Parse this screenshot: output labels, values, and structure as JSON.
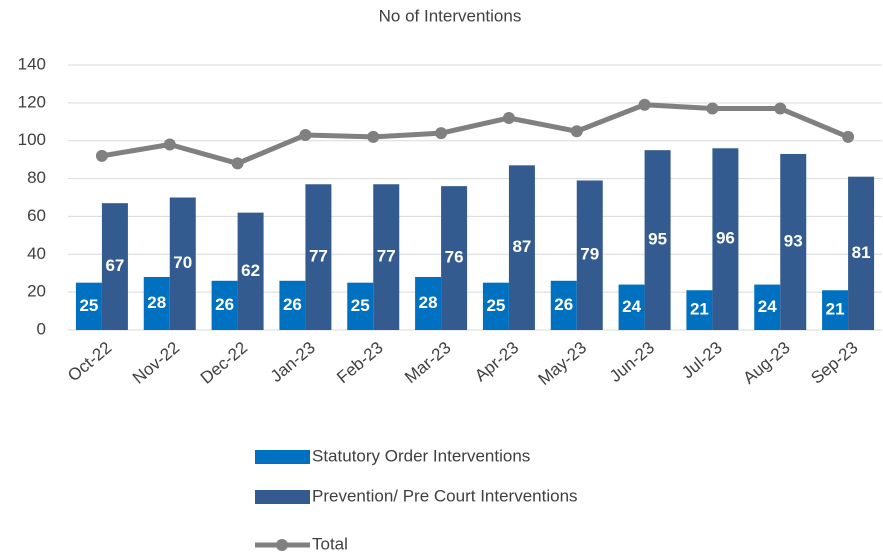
{
  "chart_data": {
    "type": "bar",
    "title": "No of Interventions",
    "categories": [
      "Oct-22",
      "Nov-22",
      "Dec-22",
      "Jan-23",
      "Feb-23",
      "Mar-23",
      "Apr-23",
      "May-23",
      "Jun-23",
      "Jul-23",
      "Aug-23",
      "Sep-23"
    ],
    "series": [
      {
        "name": "Statutory Order Interventions",
        "color": "#0070c0",
        "type": "bar",
        "values": [
          25,
          28,
          26,
          26,
          25,
          28,
          25,
          26,
          24,
          21,
          24,
          21
        ]
      },
      {
        "name": "Prevention/ Pre Court Interventions",
        "color": "#335b8f",
        "type": "bar",
        "values": [
          67,
          70,
          62,
          77,
          77,
          76,
          87,
          79,
          95,
          96,
          93,
          81
        ]
      },
      {
        "name": "Total",
        "color": "#808080",
        "type": "line",
        "values": [
          92,
          98,
          88,
          103,
          102,
          104,
          112,
          105,
          119,
          117,
          117,
          102
        ]
      }
    ],
    "ylim": [
      0,
      140
    ],
    "yticks": [
      0,
      20,
      40,
      60,
      80,
      100,
      120,
      140
    ],
    "grid": true,
    "legend": "bottom"
  }
}
